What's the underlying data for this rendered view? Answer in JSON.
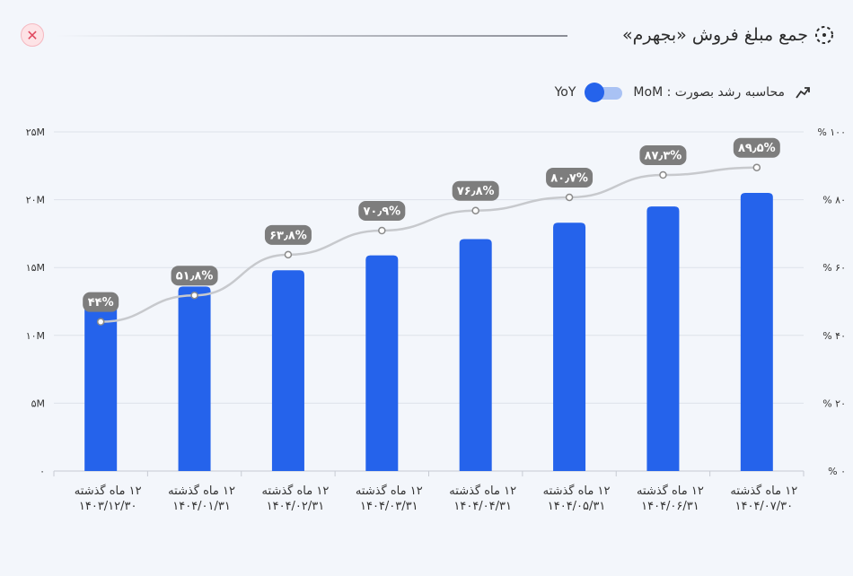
{
  "header": {
    "title": "جمع مبلغ فروش «بجهرم»",
    "close_icon": "close-icon",
    "title_icon": "dashed-circle-icon"
  },
  "controls": {
    "label": "محاسبه رشد بصورت : MoM",
    "toggle_label": "YoY",
    "trend_icon": "trend-up-icon",
    "toggle_on": true
  },
  "colors": {
    "bar": "#2563eb",
    "line": "#c7c9cd",
    "label_bg": "#7d7d7d",
    "close": "#e0485e"
  },
  "chart_data": {
    "type": "bar",
    "categories": [
      [
        "۱۲ ماه گذشته",
        "۱۴۰۳/۱۲/۳۰"
      ],
      [
        "۱۲ ماه گذشته",
        "۱۴۰۴/۰۱/۳۱"
      ],
      [
        "۱۲ ماه گذشته",
        "۱۴۰۴/۰۲/۳۱"
      ],
      [
        "۱۲ ماه گذشته",
        "۱۴۰۴/۰۳/۳۱"
      ],
      [
        "۱۲ ماه گذشته",
        "۱۴۰۴/۰۴/۳۱"
      ],
      [
        "۱۲ ماه گذشته",
        "۱۴۰۴/۰۵/۳۱"
      ],
      [
        "۱۲ ماه گذشته",
        "۱۴۰۴/۰۶/۳۱"
      ],
      [
        "۱۲ ماه گذشته",
        "۱۴۰۴/۰۷/۳۰"
      ]
    ],
    "bar_values": [
      12.4,
      13.6,
      14.8,
      15.9,
      17.1,
      18.3,
      19.5,
      20.5
    ],
    "line_values": [
      44,
      51.8,
      63.8,
      70.9,
      76.8,
      80.7,
      87.3,
      89.5
    ],
    "line_labels": [
      "۴۴%",
      "۵۱٫۸%",
      "۶۳٫۸%",
      "۷۰٫۹%",
      "۷۶٫۸%",
      "۸۰٫۷%",
      "۸۷٫۳%",
      "۸۹٫۵%"
    ],
    "y_left": {
      "ylim": [
        0,
        25
      ],
      "ticks": [
        0,
        5,
        10,
        15,
        20,
        25
      ],
      "tick_labels": [
        "۰",
        "۵M",
        "۱۰M",
        "۱۵M",
        "۲۰M",
        "۲۵M"
      ]
    },
    "y_right": {
      "ylim": [
        0,
        100
      ],
      "ticks": [
        0,
        20,
        40,
        60,
        80,
        100
      ],
      "tick_labels": [
        "% ۰",
        "% ۲۰",
        "% ۴۰",
        "% ۶۰",
        "% ۸۰",
        "% ۱۰۰"
      ]
    },
    "grid": true,
    "legend": "none"
  }
}
